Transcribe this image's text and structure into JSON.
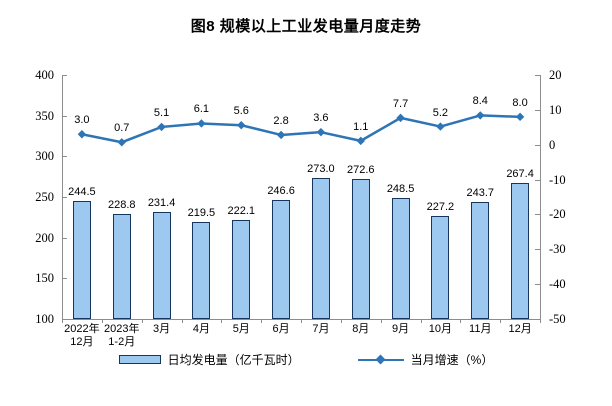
{
  "title": "图8  规模以上工业发电量月度走势",
  "chart_data": {
    "type": "combo_bar_line",
    "categories": [
      "2022年\n12月",
      "2023年\n1-2月",
      "3月",
      "4月",
      "5月",
      "6月",
      "7月",
      "8月",
      "9月",
      "10月",
      "11月",
      "12月"
    ],
    "series": [
      {
        "name": "日均发电量（亿千瓦时）",
        "type": "bar",
        "axis": "left",
        "values": [
          244.5,
          228.8,
          231.4,
          219.5,
          222.1,
          246.6,
          273.0,
          272.6,
          248.5,
          227.2,
          243.7,
          267.4
        ]
      },
      {
        "name": "当月增速（%）",
        "type": "line",
        "axis": "right",
        "values": [
          3.0,
          0.7,
          5.1,
          6.1,
          5.6,
          2.8,
          3.6,
          1.1,
          7.7,
          5.2,
          8.4,
          8.0
        ]
      }
    ],
    "left_axis": {
      "min": 100,
      "max": 400,
      "step": 50,
      "ticks": [
        400,
        350,
        300,
        250,
        200,
        150,
        100
      ]
    },
    "right_axis": {
      "min": -50,
      "max": 20,
      "step": 10,
      "ticks": [
        20,
        10,
        0,
        -10,
        -20,
        -30,
        -40,
        -50
      ]
    },
    "grid": false,
    "legend_position": "bottom",
    "colors": {
      "bar_fill": "#9dc9f1",
      "bar_border": "#16365d",
      "line": "#2e75b6",
      "axis": "#8c8c8c",
      "text": "#000000",
      "background": "#ffffff"
    }
  }
}
